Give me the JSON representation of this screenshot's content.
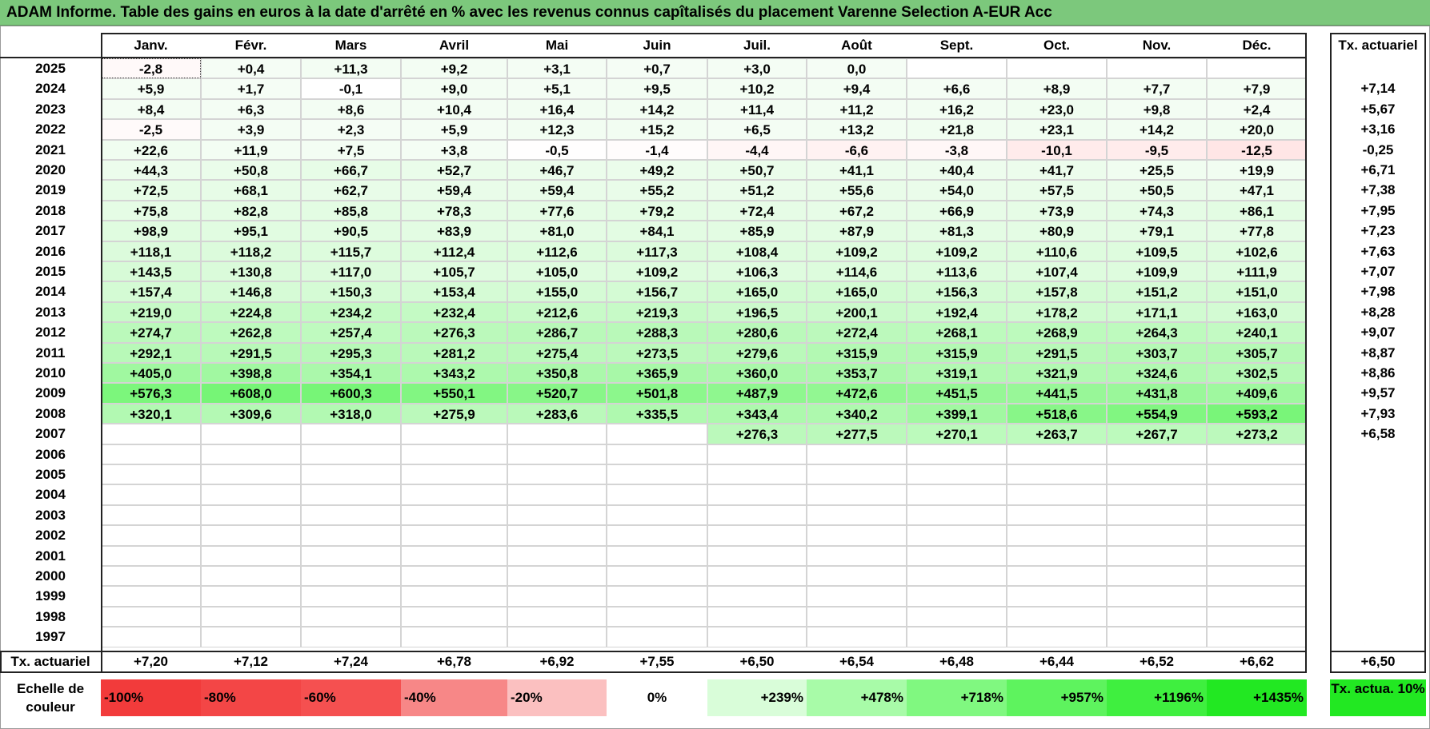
{
  "title": "ADAM Informe. Table des gains en euros à la date d'arrêté en % avec les revenus connus capîtalisés du placement Varenne Selection A-EUR Acc",
  "months": [
    "Janv.",
    "Févr.",
    "Mars",
    "Avril",
    "Mai",
    "Juin",
    "Juil.",
    "Août",
    "Sept.",
    "Oct.",
    "Nov.",
    "Déc."
  ],
  "tx_header": "Tx. actuariel",
  "rows": [
    {
      "year": "2025",
      "values": [
        "-2,8",
        "+0,4",
        "+11,3",
        "+9,2",
        "+3,1",
        "+0,7",
        "+3,0",
        "0,0",
        "",
        "",
        "",
        ""
      ],
      "tx": ""
    },
    {
      "year": "2024",
      "values": [
        "+5,9",
        "+1,7",
        "-0,1",
        "+9,0",
        "+5,1",
        "+9,5",
        "+10,2",
        "+9,4",
        "+6,6",
        "+8,9",
        "+7,7",
        "+7,9"
      ],
      "tx": "+7,14"
    },
    {
      "year": "2023",
      "values": [
        "+8,4",
        "+6,3",
        "+8,6",
        "+10,4",
        "+16,4",
        "+14,2",
        "+11,4",
        "+11,2",
        "+16,2",
        "+23,0",
        "+9,8",
        "+2,4"
      ],
      "tx": "+5,67"
    },
    {
      "year": "2022",
      "values": [
        "-2,5",
        "+3,9",
        "+2,3",
        "+5,9",
        "+12,3",
        "+15,2",
        "+6,5",
        "+13,2",
        "+21,8",
        "+23,1",
        "+14,2",
        "+20,0"
      ],
      "tx": "+3,16"
    },
    {
      "year": "2021",
      "values": [
        "+22,6",
        "+11,9",
        "+7,5",
        "+3,8",
        "-0,5",
        "-1,4",
        "-4,4",
        "-6,6",
        "-3,8",
        "-10,1",
        "-9,5",
        "-12,5"
      ],
      "tx": "-0,25"
    },
    {
      "year": "2020",
      "values": [
        "+44,3",
        "+50,8",
        "+66,7",
        "+52,7",
        "+46,7",
        "+49,2",
        "+50,7",
        "+41,1",
        "+40,4",
        "+41,7",
        "+25,5",
        "+19,9"
      ],
      "tx": "+6,71"
    },
    {
      "year": "2019",
      "values": [
        "+72,5",
        "+68,1",
        "+62,7",
        "+59,4",
        "+59,4",
        "+55,2",
        "+51,2",
        "+55,6",
        "+54,0",
        "+57,5",
        "+50,5",
        "+47,1"
      ],
      "tx": "+7,38"
    },
    {
      "year": "2018",
      "values": [
        "+75,8",
        "+82,8",
        "+85,8",
        "+78,3",
        "+77,6",
        "+79,2",
        "+72,4",
        "+67,2",
        "+66,9",
        "+73,9",
        "+74,3",
        "+86,1"
      ],
      "tx": "+7,95"
    },
    {
      "year": "2017",
      "values": [
        "+98,9",
        "+95,1",
        "+90,5",
        "+83,9",
        "+81,0",
        "+84,1",
        "+85,9",
        "+87,9",
        "+81,3",
        "+80,9",
        "+79,1",
        "+77,8"
      ],
      "tx": "+7,23"
    },
    {
      "year": "2016",
      "values": [
        "+118,1",
        "+118,2",
        "+115,7",
        "+112,4",
        "+112,6",
        "+117,3",
        "+108,4",
        "+109,2",
        "+109,2",
        "+110,6",
        "+109,5",
        "+102,6"
      ],
      "tx": "+7,63"
    },
    {
      "year": "2015",
      "values": [
        "+143,5",
        "+130,8",
        "+117,0",
        "+105,7",
        "+105,0",
        "+109,2",
        "+106,3",
        "+114,6",
        "+113,6",
        "+107,4",
        "+109,9",
        "+111,9"
      ],
      "tx": "+7,07"
    },
    {
      "year": "2014",
      "values": [
        "+157,4",
        "+146,8",
        "+150,3",
        "+153,4",
        "+155,0",
        "+156,7",
        "+165,0",
        "+165,0",
        "+156,3",
        "+157,8",
        "+151,2",
        "+151,0"
      ],
      "tx": "+7,98"
    },
    {
      "year": "2013",
      "values": [
        "+219,0",
        "+224,8",
        "+234,2",
        "+232,4",
        "+212,6",
        "+219,3",
        "+196,5",
        "+200,1",
        "+192,4",
        "+178,2",
        "+171,1",
        "+163,0"
      ],
      "tx": "+8,28"
    },
    {
      "year": "2012",
      "values": [
        "+274,7",
        "+262,8",
        "+257,4",
        "+276,3",
        "+286,7",
        "+288,3",
        "+280,6",
        "+272,4",
        "+268,1",
        "+268,9",
        "+264,3",
        "+240,1"
      ],
      "tx": "+9,07"
    },
    {
      "year": "2011",
      "values": [
        "+292,1",
        "+291,5",
        "+295,3",
        "+281,2",
        "+275,4",
        "+273,5",
        "+279,6",
        "+315,9",
        "+315,9",
        "+291,5",
        "+303,7",
        "+305,7"
      ],
      "tx": "+8,87"
    },
    {
      "year": "2010",
      "values": [
        "+405,0",
        "+398,8",
        "+354,1",
        "+343,2",
        "+350,8",
        "+365,9",
        "+360,0",
        "+353,7",
        "+319,1",
        "+321,9",
        "+324,6",
        "+302,5"
      ],
      "tx": "+8,86"
    },
    {
      "year": "2009",
      "values": [
        "+576,3",
        "+608,0",
        "+600,3",
        "+550,1",
        "+520,7",
        "+501,8",
        "+487,9",
        "+472,6",
        "+451,5",
        "+441,5",
        "+431,8",
        "+409,6"
      ],
      "tx": "+9,57"
    },
    {
      "year": "2008",
      "values": [
        "+320,1",
        "+309,6",
        "+318,0",
        "+275,9",
        "+283,6",
        "+335,5",
        "+343,4",
        "+340,2",
        "+399,1",
        "+518,6",
        "+554,9",
        "+593,2"
      ],
      "tx": "+7,93"
    },
    {
      "year": "2007",
      "values": [
        "",
        "",
        "",
        "",
        "",
        "",
        "+276,3",
        "+277,5",
        "+270,1",
        "+263,7",
        "+267,7",
        "+273,2"
      ],
      "tx": "+6,58"
    },
    {
      "year": "2006",
      "values": [
        "",
        "",
        "",
        "",
        "",
        "",
        "",
        "",
        "",
        "",
        "",
        ""
      ],
      "tx": ""
    },
    {
      "year": "2005",
      "values": [
        "",
        "",
        "",
        "",
        "",
        "",
        "",
        "",
        "",
        "",
        "",
        ""
      ],
      "tx": ""
    },
    {
      "year": "2004",
      "values": [
        "",
        "",
        "",
        "",
        "",
        "",
        "",
        "",
        "",
        "",
        "",
        ""
      ],
      "tx": ""
    },
    {
      "year": "2003",
      "values": [
        "",
        "",
        "",
        "",
        "",
        "",
        "",
        "",
        "",
        "",
        "",
        ""
      ],
      "tx": ""
    },
    {
      "year": "2002",
      "values": [
        "",
        "",
        "",
        "",
        "",
        "",
        "",
        "",
        "",
        "",
        "",
        ""
      ],
      "tx": ""
    },
    {
      "year": "2001",
      "values": [
        "",
        "",
        "",
        "",
        "",
        "",
        "",
        "",
        "",
        "",
        "",
        ""
      ],
      "tx": ""
    },
    {
      "year": "2000",
      "values": [
        "",
        "",
        "",
        "",
        "",
        "",
        "",
        "",
        "",
        "",
        "",
        ""
      ],
      "tx": ""
    },
    {
      "year": "1999",
      "values": [
        "",
        "",
        "",
        "",
        "",
        "",
        "",
        "",
        "",
        "",
        "",
        ""
      ],
      "tx": ""
    },
    {
      "year": "1998",
      "values": [
        "",
        "",
        "",
        "",
        "",
        "",
        "",
        "",
        "",
        "",
        "",
        ""
      ],
      "tx": ""
    },
    {
      "year": "1997",
      "values": [
        "",
        "",
        "",
        "",
        "",
        "",
        "",
        "",
        "",
        "",
        "",
        ""
      ],
      "tx": ""
    }
  ],
  "footer": {
    "label": "Tx. actuariel",
    "values": [
      "+7,20",
      "+7,12",
      "+7,24",
      "+6,78",
      "+6,92",
      "+7,55",
      "+6,50",
      "+6,54",
      "+6,48",
      "+6,44",
      "+6,52",
      "+6,62"
    ],
    "total": "+6,50"
  },
  "scale": {
    "label": "Echelle de couleur",
    "items": [
      {
        "text": "-100%",
        "color": "#f23b3b",
        "align": "left"
      },
      {
        "text": "-80%",
        "color": "#f34646",
        "align": "left"
      },
      {
        "text": "-60%",
        "color": "#f55050",
        "align": "left"
      },
      {
        "text": "-40%",
        "color": "#f78787",
        "align": "left"
      },
      {
        "text": "-20%",
        "color": "#fbc0c0",
        "align": "left"
      },
      {
        "text": "0%",
        "color": "#ffffff",
        "align": "center"
      },
      {
        "text": "+239%",
        "color": "#d9fdd9",
        "align": "right"
      },
      {
        "text": "+478%",
        "color": "#a8fba8",
        "align": "right"
      },
      {
        "text": "+718%",
        "color": "#80f880",
        "align": "right"
      },
      {
        "text": "+957%",
        "color": "#5ef35e",
        "align": "right"
      },
      {
        "text": "+1196%",
        "color": "#3fef3f",
        "align": "right"
      },
      {
        "text": "+1435%",
        "color": "#22e822",
        "align": "right"
      }
    ],
    "tx_label": "Tx. actua. 10%",
    "tx_color": "#22e822"
  }
}
